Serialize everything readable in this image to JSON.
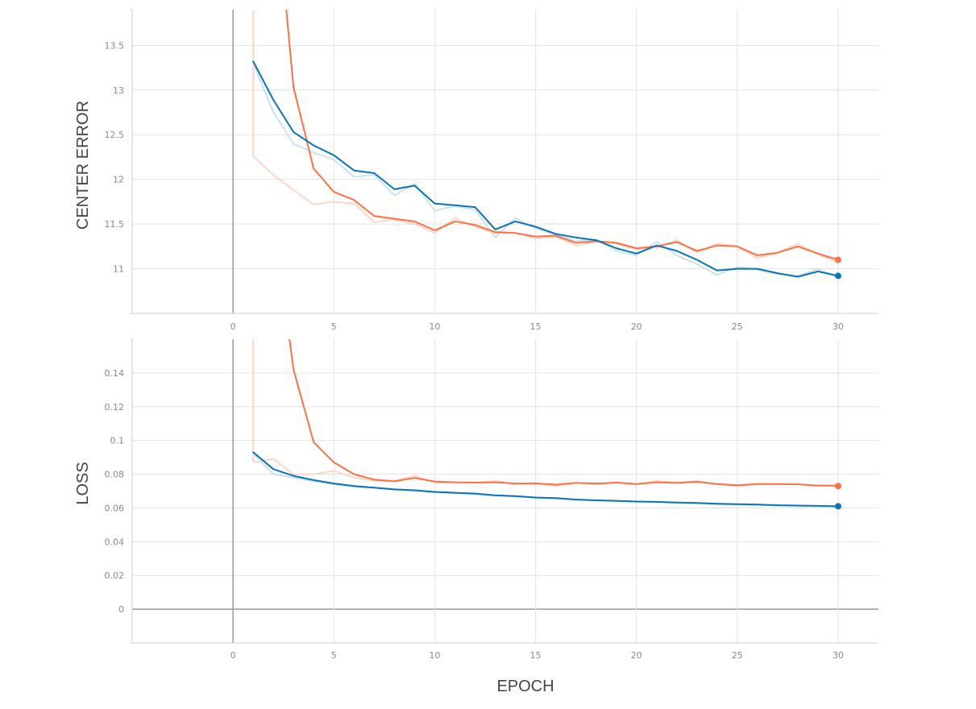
{
  "colors": {
    "blue": "#0a74b8",
    "blue_raw": "#c7dff0",
    "orange": "#ff7043",
    "orange_raw": "#ffd3c4",
    "grid": "#e2e2e2",
    "axis": "#999999",
    "tick_text": "#8a8a8a",
    "title_text": "#444444"
  },
  "chart_data": [
    {
      "type": "line",
      "ylabel": "CENTER ERROR",
      "xlabel": "",
      "xlim": [
        -5,
        32
      ],
      "ylim": [
        10.5,
        13.9
      ],
      "x_ticks": [
        "0",
        "5",
        "10",
        "15",
        "20",
        "25",
        "30"
      ],
      "y_ticks": [
        "11",
        "11.5",
        "12",
        "12.5",
        "13",
        "13.5"
      ],
      "grid": true,
      "series": [
        {
          "color_key": "blue",
          "smoothed": true,
          "x": [
            1,
            2,
            3,
            4,
            5,
            6,
            7,
            8,
            9,
            10,
            11,
            12,
            13,
            14,
            15,
            16,
            17,
            18,
            19,
            20,
            21,
            22,
            23,
            24,
            25,
            26,
            27,
            28,
            29,
            30
          ],
          "values": [
            13.32,
            12.89,
            12.53,
            12.38,
            12.27,
            12.1,
            12.07,
            11.89,
            11.93,
            11.73,
            11.71,
            11.69,
            11.44,
            11.53,
            11.47,
            11.39,
            11.35,
            11.32,
            11.23,
            11.17,
            11.26,
            11.2,
            11.1,
            10.98,
            11.0,
            11.0,
            10.95,
            10.91,
            10.97,
            10.92
          ]
        },
        {
          "color_key": "blue_raw",
          "smoothed": false,
          "x": [
            1,
            2,
            3,
            4,
            5,
            6,
            7,
            8,
            9,
            10,
            11,
            12,
            13,
            14,
            15,
            16,
            17,
            18,
            19,
            20,
            21,
            22,
            23,
            24,
            25,
            26,
            27,
            28,
            29,
            30
          ],
          "values": [
            13.3,
            12.75,
            12.4,
            12.3,
            12.22,
            12.03,
            12.05,
            11.82,
            11.95,
            11.65,
            11.7,
            11.66,
            11.35,
            11.57,
            11.45,
            11.38,
            11.31,
            11.33,
            11.2,
            11.15,
            11.3,
            11.15,
            11.05,
            10.93,
            11.02,
            10.99,
            10.94,
            10.92,
            11.0,
            10.9
          ]
        },
        {
          "color_key": "orange",
          "smoothed": true,
          "x": [
            2.6,
            3,
            4,
            5,
            6,
            7,
            8,
            9,
            10,
            11,
            12,
            13,
            14,
            15,
            16,
            17,
            18,
            19,
            20,
            21,
            22,
            23,
            24,
            25,
            26,
            27,
            28,
            29,
            30
          ],
          "values": [
            14.0,
            13.03,
            12.12,
            11.86,
            11.77,
            11.59,
            11.56,
            11.53,
            11.43,
            11.53,
            11.49,
            11.41,
            11.4,
            11.36,
            11.37,
            11.29,
            11.31,
            11.29,
            11.23,
            11.25,
            11.3,
            11.2,
            11.26,
            11.25,
            11.15,
            11.18,
            11.25,
            11.17,
            11.1
          ]
        },
        {
          "color_key": "orange_raw",
          "smoothed": false,
          "x": [
            1,
            1,
            2,
            3,
            4,
            5,
            6,
            7,
            8,
            9,
            10,
            11,
            12,
            13,
            14,
            15,
            16,
            17,
            18,
            19,
            20,
            21,
            22,
            23,
            24,
            25,
            26,
            27,
            28,
            29,
            30
          ],
          "values": [
            14.0,
            12.26,
            12.05,
            11.88,
            11.72,
            11.75,
            11.73,
            11.52,
            11.55,
            11.5,
            11.4,
            11.57,
            11.47,
            11.4,
            11.4,
            11.34,
            11.36,
            11.26,
            11.3,
            11.28,
            11.22,
            11.24,
            11.32,
            11.18,
            11.28,
            11.25,
            11.12,
            11.18,
            11.28,
            11.16,
            11.07
          ]
        }
      ],
      "endpoints": [
        {
          "color_key": "blue",
          "x": 30,
          "y": 10.92
        },
        {
          "color_key": "orange",
          "x": 30,
          "y": 11.1
        }
      ]
    },
    {
      "type": "line",
      "ylabel": "LOSS",
      "xlabel": "EPOCH",
      "xlim": [
        -5,
        32
      ],
      "ylim": [
        -0.02,
        0.16
      ],
      "x_ticks": [
        "0",
        "5",
        "10",
        "15",
        "20",
        "25",
        "30"
      ],
      "y_ticks": [
        "0",
        "0.02",
        "0.04",
        "0.06",
        "0.08",
        "0.1",
        "0.12",
        "0.14"
      ],
      "grid": true,
      "series": [
        {
          "color_key": "blue",
          "smoothed": true,
          "x": [
            1,
            2,
            3,
            4,
            5,
            6,
            7,
            8,
            9,
            10,
            11,
            12,
            13,
            14,
            15,
            16,
            17,
            18,
            19,
            20,
            21,
            22,
            23,
            24,
            25,
            26,
            27,
            28,
            29,
            30
          ],
          "values": [
            0.093,
            0.083,
            0.079,
            0.0765,
            0.0745,
            0.073,
            0.072,
            0.071,
            0.0705,
            0.0695,
            0.069,
            0.0685,
            0.0675,
            0.067,
            0.0662,
            0.0658,
            0.065,
            0.0645,
            0.0642,
            0.0638,
            0.0636,
            0.0632,
            0.063,
            0.0625,
            0.0622,
            0.062,
            0.0616,
            0.0614,
            0.0612,
            0.061
          ]
        },
        {
          "color_key": "blue_raw",
          "smoothed": false,
          "x": [
            1,
            2,
            3,
            4,
            5,
            6,
            7,
            8,
            9,
            10,
            11,
            12,
            13,
            14,
            15,
            16,
            17,
            18,
            19,
            20,
            21,
            22,
            23,
            24,
            25,
            26,
            27,
            28,
            29,
            30
          ],
          "values": [
            0.092,
            0.08,
            0.078,
            0.0758,
            0.074,
            0.0725,
            0.0718,
            0.0708,
            0.0702,
            0.069,
            0.0688,
            0.068,
            0.0672,
            0.0668,
            0.066,
            0.0655,
            0.0648,
            0.0643,
            0.064,
            0.0636,
            0.0634,
            0.063,
            0.0627,
            0.0622,
            0.062,
            0.0617,
            0.0614,
            0.0612,
            0.061,
            0.0608
          ]
        },
        {
          "color_key": "orange",
          "smoothed": true,
          "x": [
            2.8,
            3,
            4,
            5,
            6,
            7,
            8,
            9,
            10,
            11,
            12,
            13,
            14,
            15,
            16,
            17,
            18,
            19,
            20,
            21,
            22,
            23,
            24,
            25,
            26,
            27,
            28,
            29,
            30
          ],
          "values": [
            0.16,
            0.142,
            0.099,
            0.087,
            0.08,
            0.0768,
            0.0758,
            0.0778,
            0.0757,
            0.0752,
            0.075,
            0.0752,
            0.0745,
            0.0745,
            0.0738,
            0.0748,
            0.0745,
            0.075,
            0.0742,
            0.0752,
            0.0748,
            0.0755,
            0.0742,
            0.0735,
            0.0742,
            0.0742,
            0.074,
            0.0733,
            0.0732
          ]
        },
        {
          "color_key": "orange_raw",
          "smoothed": false,
          "x": [
            1,
            1,
            2,
            3,
            4,
            5,
            6,
            7,
            8,
            9,
            10,
            11,
            12,
            13,
            14,
            15,
            16,
            17,
            18,
            19,
            20,
            21,
            22,
            23,
            24,
            25,
            26,
            27,
            28,
            29,
            30
          ],
          "values": [
            0.16,
            0.087,
            0.089,
            0.08,
            0.08,
            0.082,
            0.078,
            0.076,
            0.076,
            0.079,
            0.075,
            0.075,
            0.075,
            0.076,
            0.074,
            0.075,
            0.073,
            0.075,
            0.074,
            0.075,
            0.074,
            0.076,
            0.075,
            0.076,
            0.074,
            0.073,
            0.074,
            0.074,
            0.074,
            0.073,
            0.073
          ]
        }
      ],
      "endpoints": [
        {
          "color_key": "blue",
          "x": 30,
          "y": 0.061
        },
        {
          "color_key": "orange",
          "x": 30,
          "y": 0.073
        }
      ]
    }
  ]
}
